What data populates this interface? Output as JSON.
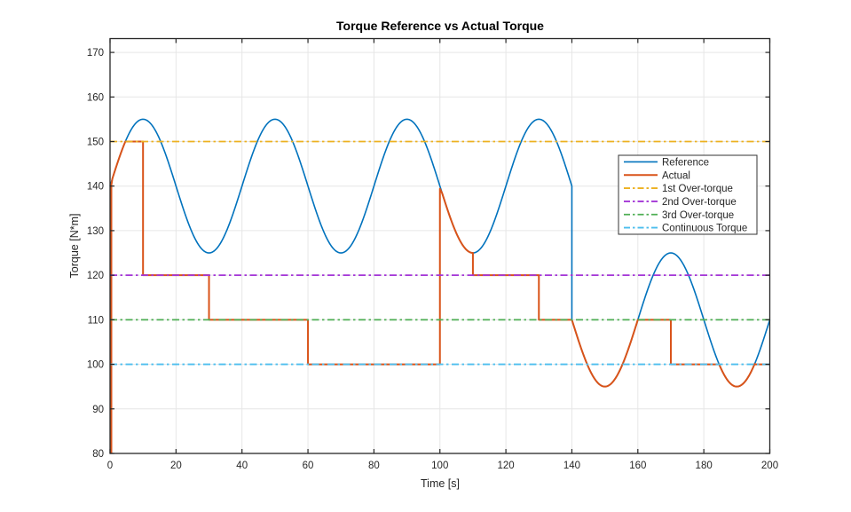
{
  "chart_data": {
    "type": "line",
    "title": "Torque Reference vs Actual Torque",
    "xlabel": "Time [s]",
    "ylabel": "Torque [N*m]",
    "xlim": [
      0,
      200
    ],
    "ylim": [
      80,
      173.1
    ],
    "xticks": [
      0,
      20,
      40,
      60,
      80,
      100,
      120,
      140,
      160,
      180,
      200
    ],
    "yticks": [
      80,
      90,
      100,
      110,
      120,
      130,
      140,
      150,
      160,
      170
    ],
    "grid": true,
    "grid_color": "#e6e6e6",
    "axis_color": "#262626",
    "background_color": "#ffffff",
    "legend": {
      "position": "right-inside",
      "border_color": "#333333",
      "entries": [
        "Reference",
        "Actual",
        "1st Over-torque",
        "2nd Over-torque",
        "3rd Over-torque",
        "Continuous Torque"
      ]
    },
    "series": [
      {
        "name": "Reference",
        "color": "#0072BD",
        "style": "solid",
        "width": 1.6,
        "description": "Sinusoid 140+15*sin(2*pi*t/40) for t in [0,140] (peaks 155 at t=10,50,90,130; troughs 125 at t=30,70,110), step down 140->110 at t=140, then 110-15*sin(2*pi*(t-140)/40) for t in [140,200] (troughs 95 at t=150,190; peak 125 at t=170)",
        "segments": [
          {
            "type": "sine",
            "t": [
              0,
              140
            ],
            "mean": 140,
            "amp": 15,
            "period": 40,
            "t0": 0
          },
          {
            "type": "step",
            "t": 140,
            "from": 140,
            "to": 110
          },
          {
            "type": "sine",
            "t": [
              140,
              200
            ],
            "mean": 110,
            "amp": -15,
            "period": 40,
            "t0": 140
          }
        ]
      },
      {
        "name": "Actual",
        "color": "#D95319",
        "style": "solid",
        "width": 2,
        "description": "Tracks Reference but clamped by the active torque limit: 150 until t=10, 120 until t=30, 110 until t=60, 100 until t=100, unclamped jump to ~139 at t=100 tracking down to 125, 120 until t=130, 110 until t=170 (tracking Reference below limit 140-160), 100 from t=170 (tracking Reference below 100 near t=190)",
        "segments": [
          {
            "type": "step",
            "t": 0.4,
            "from": 80,
            "to": 140.2
          },
          {
            "type": "follow",
            "t": [
              0.4,
              4.65
            ],
            "skip": 0.3
          },
          {
            "type": "hold",
            "t": [
              4.65,
              10
            ],
            "value": 150
          },
          {
            "type": "step",
            "t": 10,
            "from": 150,
            "to": 120
          },
          {
            "type": "hold",
            "t": [
              10,
              30
            ],
            "value": 120
          },
          {
            "type": "step",
            "t": 30,
            "from": 120,
            "to": 110
          },
          {
            "type": "hold",
            "t": [
              30,
              60
            ],
            "value": 110
          },
          {
            "type": "step",
            "t": 60,
            "from": 110,
            "to": 100
          },
          {
            "type": "hold",
            "t": [
              60,
              100
            ],
            "value": 100
          },
          {
            "type": "step",
            "t": 100,
            "from": 100,
            "to": 139.4
          },
          {
            "type": "follow",
            "t": [
              100,
              110
            ],
            "skip": 0.7
          },
          {
            "type": "step",
            "t": 110,
            "from": 125,
            "to": 120
          },
          {
            "type": "hold",
            "t": [
              110,
              130
            ],
            "value": 120
          },
          {
            "type": "step",
            "t": 130,
            "from": 120,
            "to": 110
          },
          {
            "type": "hold",
            "t": [
              130,
              140
            ],
            "value": 110
          },
          {
            "type": "follow",
            "t": [
              140,
              160
            ],
            "skip": 0
          },
          {
            "type": "hold",
            "t": [
              160,
              170
            ],
            "value": 110
          },
          {
            "type": "step",
            "t": 170,
            "from": 110,
            "to": 100
          },
          {
            "type": "hold",
            "t": [
              170,
              184.6
            ],
            "value": 100
          },
          {
            "type": "follow",
            "t": [
              184.6,
              195.4
            ],
            "skip": 0
          },
          {
            "type": "hold",
            "t": [
              195.4,
              200
            ],
            "value": 100
          }
        ]
      },
      {
        "name": "1st Over-torque",
        "color": "#EDB120",
        "style": "dashdot",
        "width": 1.8,
        "y": 150
      },
      {
        "name": "2nd Over-torque",
        "color": "#A335D6",
        "style": "dashdot",
        "width": 1.8,
        "y": 120
      },
      {
        "name": "3rd Over-torque",
        "color": "#4FAE54",
        "style": "dashdot",
        "width": 1.8,
        "y": 110
      },
      {
        "name": "Continuous Torque",
        "color": "#4DBEEE",
        "style": "dashdot",
        "width": 1.8,
        "y": 100
      }
    ]
  }
}
